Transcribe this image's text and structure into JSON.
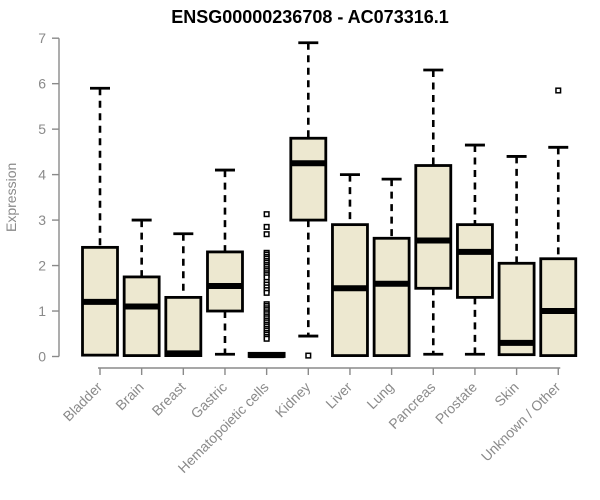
{
  "chart_data": {
    "type": "boxplot",
    "title": "ENSG00000236708 - AC073316.1",
    "ylabel": "Expression",
    "xlabel": "",
    "ylim": [
      0,
      7
    ],
    "yticks": [
      0,
      1,
      2,
      3,
      4,
      5,
      6,
      7
    ],
    "grid": false,
    "legend": "none",
    "categories": [
      "Bladder",
      "Brain",
      "Breast",
      "Gastric",
      "Hematopoietic cells",
      "Kidney",
      "Liver",
      "Lung",
      "Pancreas",
      "Prostate",
      "Skin",
      "Unknown / Other"
    ],
    "series": [
      {
        "name": "Bladder",
        "low": 0.03,
        "q1": 0.03,
        "median": 1.2,
        "q3": 2.4,
        "high": 5.9,
        "outliers": []
      },
      {
        "name": "Brain",
        "low": 0.02,
        "q1": 0.02,
        "median": 1.1,
        "q3": 1.75,
        "high": 3.0,
        "outliers": []
      },
      {
        "name": "Breast",
        "low": 0.02,
        "q1": 0.02,
        "median": 0.07,
        "q3": 1.3,
        "high": 2.7,
        "outliers": []
      },
      {
        "name": "Gastric",
        "low": 0.05,
        "q1": 1.0,
        "median": 1.55,
        "q3": 2.3,
        "high": 4.1,
        "outliers": []
      },
      {
        "name": "Hematopoietic cells",
        "low": 0.0,
        "q1": 0.0,
        "median": 0.03,
        "q3": 0.07,
        "high": 0.07,
        "outliers": [
          3.13,
          2.85,
          2.69,
          2.28,
          2.24,
          2.19,
          2.15,
          2.1,
          2.06,
          2.01,
          1.97,
          1.92,
          1.88,
          1.83,
          1.79,
          1.74,
          1.64,
          1.58,
          1.52,
          1.46,
          1.4,
          1.15,
          1.11,
          1.06,
          1.02,
          0.97,
          0.93,
          0.88,
          0.84,
          0.79,
          0.75,
          0.7,
          0.66,
          0.61,
          0.57,
          0.52,
          0.48,
          0.43,
          0.39
        ]
      },
      {
        "name": "Kidney",
        "low": 0.45,
        "q1": 3.0,
        "median": 4.25,
        "q3": 4.8,
        "high": 6.9,
        "outliers": [
          0.02
        ]
      },
      {
        "name": "Liver",
        "low": 0.02,
        "q1": 0.02,
        "median": 1.5,
        "q3": 2.9,
        "high": 4.0,
        "outliers": []
      },
      {
        "name": "Lung",
        "low": 0.02,
        "q1": 0.02,
        "median": 1.6,
        "q3": 2.6,
        "high": 3.9,
        "outliers": []
      },
      {
        "name": "Pancreas",
        "low": 0.05,
        "q1": 1.5,
        "median": 2.55,
        "q3": 4.2,
        "high": 6.3,
        "outliers": []
      },
      {
        "name": "Prostate",
        "low": 0.05,
        "q1": 1.3,
        "median": 2.3,
        "q3": 2.9,
        "high": 4.65,
        "outliers": []
      },
      {
        "name": "Skin",
        "low": 0.04,
        "q1": 0.04,
        "median": 0.3,
        "q3": 2.05,
        "high": 4.4,
        "outliers": []
      },
      {
        "name": "Unknown / Other",
        "low": 0.02,
        "q1": 0.02,
        "median": 1.0,
        "q3": 2.15,
        "high": 4.6,
        "outliers": [
          5.85
        ]
      }
    ],
    "style": {
      "box_fill": "#EDE8D0",
      "box_border": "#000000",
      "median_color": "#000000",
      "whisker_color": "#000000",
      "outlier_fill": "#FFFFFF",
      "outlier_border": "#000000",
      "axis_color": "#8A8A8A",
      "tick_label_color": "#8A8A8A",
      "title_color": "#000000",
      "background": "#FFFFFF"
    }
  }
}
